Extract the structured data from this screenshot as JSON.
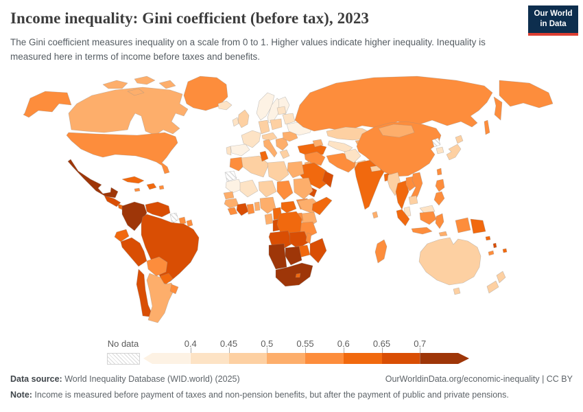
{
  "header": {
    "title": "Income inequality: Gini coefficient (before tax), 2023",
    "subtitle": "The Gini coefficient measures inequality on a scale from 0 to 1. Higher values indicate higher inequality. Inequality is measured here in terms of income before taxes and benefits.",
    "logo": {
      "line1": "Our World",
      "line2": "in Data",
      "navy": "#0d2e4e",
      "red": "#dc3e32"
    }
  },
  "chart_data": {
    "type": "choropleth",
    "title": "Income inequality: Gini coefficient (before tax), 2023",
    "year": 2023,
    "metric": "Gini coefficient (before tax)",
    "scale_note": "Scale from 0 to 1; higher values indicate higher inequality",
    "legend_ticks": [
      "0.4",
      "0.45",
      "0.5",
      "0.55",
      "0.6",
      "0.65",
      "0.7"
    ],
    "no_data_label": "No data",
    "bins": [
      {
        "range": "< 0.4",
        "color": "#fdf2e4"
      },
      {
        "range": "0.4–0.45",
        "color": "#fde3c5"
      },
      {
        "range": "0.45–0.5",
        "color": "#fdd0a2"
      },
      {
        "range": "0.5–0.55",
        "color": "#fdae6b"
      },
      {
        "range": "0.55–0.6",
        "color": "#fd8d3c"
      },
      {
        "range": "0.6–0.65",
        "color": "#f1690e"
      },
      {
        "range": "0.65–0.7",
        "color": "#d94e04"
      },
      {
        "range": "> 0.7",
        "color": "#9e3608"
      }
    ],
    "regions": {
      "alaska": 4,
      "canada": 3,
      "arctic-islands-1": 3,
      "arctic-islands-2": 3,
      "arctic-islands-3": 3,
      "arctic-islands-4": 3,
      "greenland": 4,
      "usa": 4,
      "mexico": 7,
      "central-america-west": 6,
      "central-america-east": 5,
      "cuba": 5,
      "jamaica": 4,
      "hispaniola": 5,
      "puerto-rico": 4,
      "colombia": 7,
      "venezuela": 6,
      "guyana": "nd",
      "suriname": 4,
      "french-guiana": 4,
      "ecuador": 5,
      "peru": 6,
      "brazil": 6,
      "bolivia": 4,
      "paraguay": 5,
      "chile": 6,
      "argentina": 3,
      "uruguay": 4,
      "iceland": 1,
      "norway": 0,
      "sweden": 0,
      "finland": 0,
      "denmark": 1,
      "uk": 2,
      "ireland": 1,
      "france": 1,
      "spain": 0,
      "portugal": 1,
      "germany": 2,
      "poland": 2,
      "central-europe": 2,
      "italy": 3,
      "balkans": 3,
      "greece": 2,
      "romania": 3,
      "ukraine": 0,
      "belarus": 1,
      "baltics": 1,
      "turkey": 5,
      "russia": 4,
      "chukotka": 4,
      "kamchatka": 4,
      "sakhalin": 4,
      "kazakhstan": 2,
      "uzbek-turkmen": 1,
      "kyrgyz-tajik": 3,
      "caucasus": 3,
      "syria-iraq": 4,
      "iran": 4,
      "afghanistan": 1,
      "pakistan": 2,
      "jordan": 3,
      "saudi-arabia": 5,
      "yemen": 6,
      "oman": 6,
      "egypt": 3,
      "morocco": 4,
      "western-sahara": "nd",
      "algeria": 2,
      "tunisia": 5,
      "libya": 2,
      "mauritania": 0,
      "mali": 1,
      "niger": 2,
      "chad": 4,
      "sudan": 3,
      "south-sudan": 4,
      "ethiopia": 3,
      "somalia": 5,
      "kenya": 3,
      "uganda": 4,
      "tanzania": 4,
      "senegal": 3,
      "guinea": 3,
      "sierra-leone": 4,
      "cote-divoire": 6,
      "ghana": 4,
      "togo-benin": 3,
      "nigeria": 3,
      "cameroon": 5,
      "central-african-republic": 5,
      "gabon": 3,
      "congo": 6,
      "drc": 5,
      "angola": 6,
      "zambia": 6,
      "malawi": 4,
      "mozambique": 6,
      "zimbabwe": 5,
      "namibia": 7,
      "botswana": 7,
      "south-africa": 7,
      "lesotho": 5,
      "madagascar": 4,
      "india": 5,
      "nepal": 2,
      "bangladesh": 5,
      "sri-lanka": 3,
      "china": 4,
      "mongolia": 3,
      "myanmar": 2,
      "thailand": 5,
      "laos": 4,
      "vietnam": 4,
      "cambodia": 2,
      "malaysia": 1,
      "north-korea": "nd",
      "south-korea": 1,
      "japan-hokkaido": 2,
      "japan-honshu": 2,
      "taiwan": 4,
      "philippines-north": 4,
      "philippines-south": 4,
      "sumatra": 5,
      "java": 4,
      "borneo-malaysia": 1,
      "borneo-indonesia": 4,
      "sulawesi": 4,
      "west-papua": 4,
      "papua-new-guinea": 5,
      "timor": 3,
      "australia": 2,
      "tasmania": 2,
      "nz-north": 2,
      "nz-south": 2,
      "new-caledonia": 4,
      "fiji": 5,
      "solomon-islands": 5,
      "vanuatu": 6
    }
  },
  "footer": {
    "source_label": "Data source:",
    "source_text": " World Inequality Database (WID.world) (2025)",
    "link": "OurWorldinData.org/economic-inequality | CC BY",
    "note_label": "Note:",
    "note_text": " Income is measured before payment of taxes and non-pension benefits, but after the payment of public and private pensions."
  }
}
